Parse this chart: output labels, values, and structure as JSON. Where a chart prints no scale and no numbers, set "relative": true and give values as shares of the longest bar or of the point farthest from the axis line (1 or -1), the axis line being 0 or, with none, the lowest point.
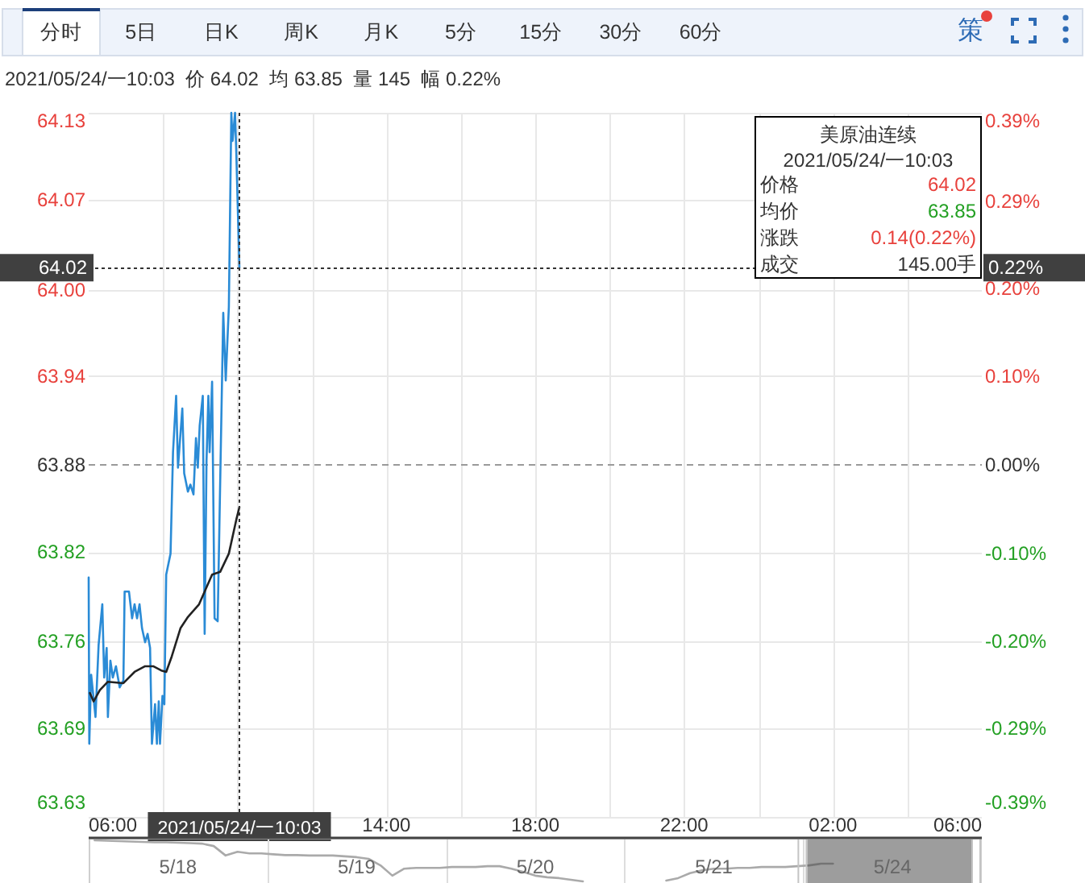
{
  "chart_data": [
    {
      "type": "line",
      "title": "美原油连续",
      "subtitle": "2021/05/24/一10:03  价 64.02  均 63.85  量 145  幅 0.22%",
      "annotations": [
        "2021/05/24/一10:03",
        "价格",
        "64.02",
        "均价",
        "63.85",
        "涨跌",
        "0.14(0.22%)",
        "成交",
        "145.00手",
        "0.22%",
        "分时",
        "5日",
        "日K",
        "周K",
        "月K",
        "5分",
        "15分",
        "30分",
        "60分",
        "策"
      ],
      "series": [
        {
          "color": "#2a8bd6",
          "x": [
            "2021-05-24T06:00",
            "2021-05-24T06:01",
            "2021-05-24T06:04",
            "2021-05-24T06:11",
            "2021-05-24T06:16",
            "2021-05-24T06:22",
            "2021-05-24T06:25",
            "2021-05-24T06:29",
            "2021-05-24T06:31",
            "2021-05-24T06:35",
            "2021-05-24T06:39",
            "2021-05-24T06:44",
            "2021-05-24T06:50",
            "2021-05-24T06:56",
            "2021-05-24T06:58",
            "2021-05-24T07:05",
            "2021-05-24T07:10",
            "2021-05-24T07:14",
            "2021-05-24T07:18",
            "2021-05-24T07:22",
            "2021-05-24T07:26",
            "2021-05-24T07:31",
            "2021-05-24T07:35",
            "2021-05-24T07:39",
            "2021-05-24T07:42",
            "2021-05-24T07:47",
            "2021-05-24T07:50",
            "2021-05-24T07:53",
            "2021-05-24T07:55",
            "2021-05-24T07:59",
            "2021-05-24T08:02",
            "2021-05-24T08:05",
            "2021-05-24T08:12",
            "2021-05-24T08:16",
            "2021-05-24T08:21",
            "2021-05-24T08:24",
            "2021-05-24T08:31",
            "2021-05-24T08:34",
            "2021-05-24T08:40",
            "2021-05-24T08:44",
            "2021-05-24T08:49",
            "2021-05-24T08:53",
            "2021-05-24T08:56",
            "2021-05-24T08:59",
            "2021-05-24T09:04",
            "2021-05-24T09:07",
            "2021-05-24T09:10",
            "2021-05-24T09:13",
            "2021-05-24T09:15",
            "2021-05-24T09:19",
            "2021-05-24T09:23",
            "2021-05-24T09:28",
            "2021-05-24T09:37",
            "2021-05-24T09:41",
            "2021-05-24T09:46",
            "2021-05-24T09:50",
            "2021-05-24T09:52",
            "2021-05-24T09:56",
            "2021-05-24T09:58",
            "2021-05-24T10:03"
          ],
          "values": [
            63.8,
            63.682,
            63.731,
            63.701,
            63.752,
            63.781,
            63.729,
            63.75,
            63.701,
            63.741,
            63.729,
            63.737,
            63.722,
            63.727,
            63.79,
            63.79,
            63.771,
            63.781,
            63.771,
            63.781,
            63.764,
            63.754,
            63.76,
            63.75,
            63.682,
            63.71,
            63.682,
            63.712,
            63.682,
            63.716,
            63.71,
            63.802,
            63.817,
            63.889,
            63.929,
            63.878,
            63.92,
            63.874,
            63.861,
            63.866,
            63.859,
            63.899,
            63.878,
            63.908,
            63.929,
            63.76,
            63.883,
            63.929,
            63.889,
            63.939,
            63.771,
            63.769,
            63.988,
            63.94,
            63.992,
            64.13,
            64.11,
            64.13,
            64.102,
            64.02
          ]
        },
        {
          "color": "#222222",
          "x": [
            "2021-05-24T06:02",
            "2021-05-24T06:08",
            "2021-05-24T06:18",
            "2021-05-24T06:31",
            "2021-05-24T06:56",
            "2021-05-24T07:14",
            "2021-05-24T07:31",
            "2021-05-24T07:44",
            "2021-05-24T07:57",
            "2021-05-24T08:05",
            "2021-05-24T08:14",
            "2021-05-24T08:28",
            "2021-05-24T08:40",
            "2021-05-24T08:58",
            "2021-05-24T09:07",
            "2021-05-24T09:19",
            "2021-05-24T09:32",
            "2021-05-24T09:46",
            "2021-05-24T09:58",
            "2021-05-24T10:03"
          ],
          "values": [
            63.718,
            63.712,
            63.72,
            63.726,
            63.725,
            63.733,
            63.737,
            63.737,
            63.734,
            63.733,
            63.744,
            63.764,
            63.772,
            63.781,
            63.79,
            63.802,
            63.804,
            63.817,
            63.841,
            63.85
          ]
        }
      ],
      "xlim": [
        "2021-05-24T06:00",
        "2021-05-25T06:00"
      ],
      "xticks": [
        {
          "value": "2021-05-24T06:00",
          "label": "06:00"
        },
        {
          "value": "2021-05-24T08:00",
          "label": null
        },
        {
          "value": "2021-05-24T10:00",
          "label": null
        },
        {
          "value": "2021-05-24T12:00",
          "label": null
        },
        {
          "value": "2021-05-24T14:00",
          "label": "14:00"
        },
        {
          "value": "2021-05-24T16:00",
          "label": null
        },
        {
          "value": "2021-05-24T18:00",
          "label": "18:00"
        },
        {
          "value": "2021-05-24T20:00",
          "label": null
        },
        {
          "value": "2021-05-24T22:00",
          "label": "22:00"
        },
        {
          "value": "2021-05-25T00:00",
          "label": null
        },
        {
          "value": "2021-05-25T02:00",
          "label": "02:00"
        },
        {
          "value": "2021-05-25T04:00",
          "label": null
        },
        {
          "value": "2021-05-25T06:00",
          "label": "06:00"
        }
      ],
      "ylim": [
        63.63,
        64.13
      ],
      "yticks": [
        63.63,
        {
          "value": 63.693,
          "label": "63.69"
        },
        {
          "value": 63.755,
          "label": "63.76"
        },
        {
          "value": 63.818,
          "label": "63.82"
        },
        63.88,
        {
          "value": 63.943,
          "label": "63.94"
        },
        {
          "value": 64.004,
          "label": "64.00"
        },
        {
          "value": 64.068,
          "label": "64.07"
        },
        64.13
      ],
      "y2lim": [
        -0.391,
        0.391
      ],
      "y2ticks": [
        {
          "value": -0.391,
          "label": "-0.39%"
        },
        {
          "value": -0.293,
          "label": "-0.29%"
        },
        {
          "value": -0.196,
          "label": "-0.20%"
        },
        {
          "value": -0.098,
          "label": "-0.10%"
        },
        {
          "value": 0,
          "label": "0.00%"
        },
        {
          "value": 0.098,
          "label": "0.10%"
        },
        {
          "value": 0.196,
          "label": "0.20%"
        },
        {
          "value": 0.293,
          "label": "0.29%"
        },
        {
          "value": 0.391,
          "label": "0.39%"
        }
      ],
      "ref_lines": [
        {
          "axis": "y",
          "value": 63.88,
          "line_style": "dashed",
          "color": "#9a9a9a"
        },
        {
          "axis": "x",
          "value": "2021-05-24T10:03",
          "label": "2021/05/24/一10:03",
          "line_style": "dotted",
          "color": "#333333"
        },
        {
          "axis": "y",
          "value": 64.02,
          "label": "64.02",
          "line_style": "dotted",
          "color": "#333333"
        }
      ],
      "grid": true
    },
    {
      "type": "line",
      "relative": true,
      "categories": [
        null,
        null,
        null,
        null,
        null,
        null,
        null,
        "5/18",
        null,
        null,
        null,
        null,
        null,
        null,
        null,
        null,
        null,
        null,
        null,
        null,
        null,
        null,
        "5/19",
        null,
        null,
        null,
        null,
        null,
        null,
        null,
        null,
        null,
        null,
        null,
        null,
        null,
        null,
        "5/20",
        null,
        null,
        null,
        null,
        null,
        null,
        null,
        null,
        null,
        null,
        null,
        null,
        null,
        null,
        "5/21",
        null,
        null,
        null,
        null,
        null,
        null,
        null,
        null,
        null,
        null,
        null,
        null,
        null,
        null,
        "5/24",
        null,
        null,
        null,
        null,
        null,
        null,
        null
      ],
      "series": [
        {
          "color": "#aaaaaa",
          "values": [
            1,
            0.99,
            0.98,
            0.97,
            0.96,
            0.95,
            0.95,
            0.94,
            0.93,
            0.92,
            0.86,
            0.63,
            0.72,
            0.68,
            0.68,
            0.66,
            0.64,
            0.64,
            0.63,
            0.63,
            0.63,
            0.61,
            0.59,
            0.55,
            0.39,
            0.14,
            0.31,
            0.33,
            0.33,
            0.33,
            0.35,
            0.35,
            0.35,
            0.37,
            0.37,
            0.31,
            0.23,
            0.14,
            0.1,
            0.08,
            0.04,
            0,
            null,
            null,
            null,
            null,
            null,
            null,
            0.02,
            0.08,
            0.2,
            0.27,
            0.31,
            0.31,
            0.33,
            0.33,
            0.35,
            0.35,
            0.35,
            0.37,
            0.39,
            0.43,
            0.43,
            null,
            null,
            null,
            null,
            null,
            null,
            null,
            null,
            null,
            null,
            null,
            null
          ]
        }
      ],
      "grid": "x",
      "tick_labels": "x"
    }
  ]
}
